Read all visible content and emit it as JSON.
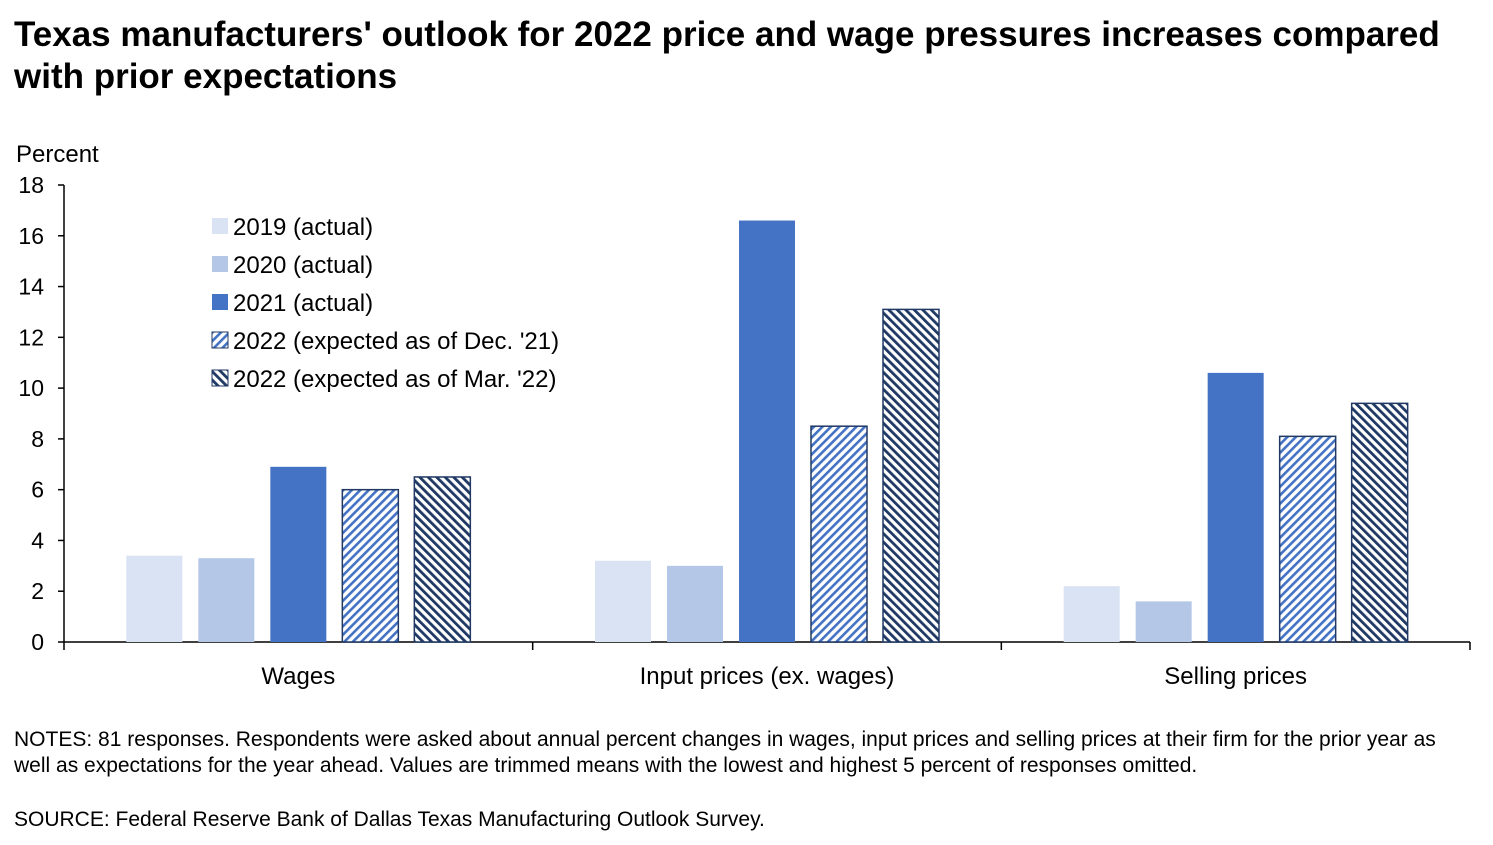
{
  "title": "Texas manufacturers' outlook for 2022 price and wage pressures increases compared with prior expectations",
  "notes": "NOTES: 81 responses. Respondents were asked about annual percent changes in wages, input prices and selling prices at their firm for the prior year as well as expectations for the year ahead. Values are trimmed means with the lowest and highest 5 percent of responses omitted.",
  "source": "SOURCE: Federal Reserve Bank of Dallas Texas Manufacturing Outlook Survey.",
  "chart_data": {
    "type": "bar",
    "title": "Texas manufacturers' outlook for 2022 price and wage pressures increases compared with prior expectations",
    "ylabel": "Percent",
    "xlabel": "",
    "ylim": [
      0,
      18
    ],
    "yticks": [
      0,
      2,
      4,
      6,
      8,
      10,
      12,
      14,
      16,
      18
    ],
    "categories": [
      "Wages",
      "Input prices (ex. wages)",
      "Selling prices"
    ],
    "legend_position": "upper-left",
    "grid": false,
    "series": [
      {
        "name": "2019 (actual)",
        "color": "#dae3f3",
        "pattern": "solid",
        "values": [
          3.4,
          3.2,
          2.2
        ]
      },
      {
        "name": "2020 (actual)",
        "color": "#b4c7e7",
        "pattern": "solid",
        "values": [
          3.3,
          3.0,
          1.6
        ]
      },
      {
        "name": "2021 (actual)",
        "color": "#4472c4",
        "pattern": "solid",
        "values": [
          6.9,
          16.6,
          10.6
        ]
      },
      {
        "name": "2022 (expected as of Dec. '21)",
        "color": "#4472c4",
        "pattern": "hatch-light",
        "values": [
          6.0,
          8.5,
          8.1
        ]
      },
      {
        "name": "2022 (expected as of Mar. '22)",
        "color": "#1f3864",
        "pattern": "hatch-dark",
        "values": [
          6.5,
          13.1,
          9.4
        ]
      }
    ]
  }
}
